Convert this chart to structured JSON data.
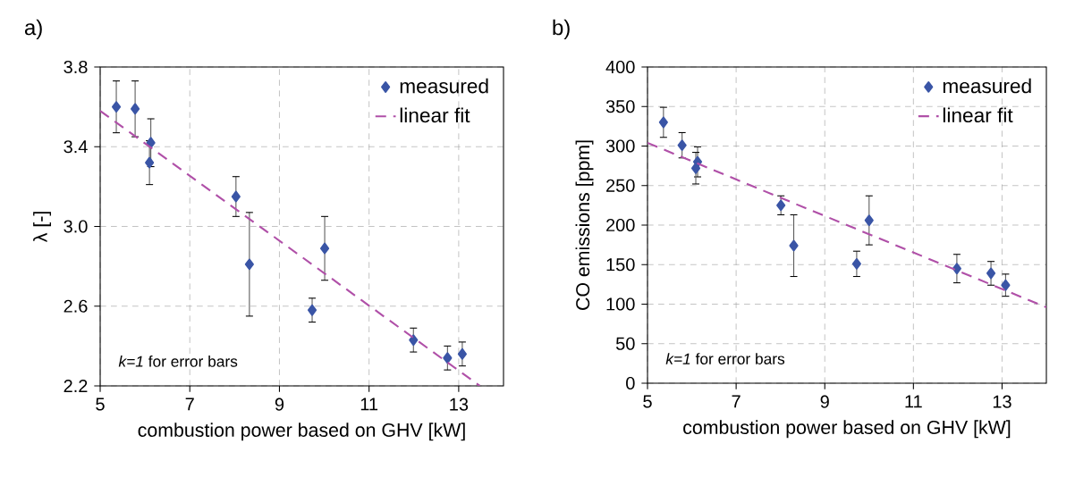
{
  "chart_data": [
    {
      "type": "scatter",
      "title": "a)",
      "xlabel": "combustion power based on GHV [kW]",
      "ylabel": "λ [-]",
      "xlim": [
        5,
        14
      ],
      "xticks": [
        5,
        7,
        9,
        11,
        13
      ],
      "ylim": [
        2.2,
        3.8
      ],
      "yticks": [
        2.2,
        2.6,
        {
          "value": 3.0,
          "label": "3.0"
        },
        3.4,
        3.8
      ],
      "grid": true,
      "legend": "top right",
      "annotations": [
        "*k=1*  for error bars"
      ],
      "series": [
        {
          "name": "measured",
          "marker": "diamond",
          "color": "#3a55a6",
          "x": [
            5.36,
            5.78,
            6.13,
            6.1,
            8.03,
            8.33,
            9.73,
            10.01,
            11.99,
            12.75,
            13.08
          ],
          "values": [
            3.6,
            3.59,
            3.42,
            3.32,
            3.15,
            2.81,
            2.58,
            2.89,
            2.43,
            2.34,
            2.36
          ],
          "errors": [
            0.13,
            0.14,
            0.12,
            0.11,
            0.1,
            0.26,
            0.06,
            0.16,
            0.06,
            0.06,
            0.06
          ]
        },
        {
          "name": "linear fit",
          "type": "line",
          "marker": "none",
          "line_style": "dashed",
          "color": "#b050a8",
          "x": [
            5,
            13.47
          ],
          "values": [
            3.58,
            2.2
          ]
        }
      ]
    },
    {
      "type": "scatter",
      "title": "b)",
      "xlabel": "combustion power based on GHV [kW]",
      "ylabel": "CO emissions [ppm]",
      "xlim": [
        5,
        14
      ],
      "xticks": [
        5,
        7,
        9,
        11,
        13
      ],
      "ylim": [
        0,
        400
      ],
      "yticks": [
        0,
        50,
        100,
        150,
        200,
        250,
        300,
        350,
        400
      ],
      "grid": true,
      "legend": "top right",
      "annotations": [
        "*k=1*  for error bars"
      ],
      "series": [
        {
          "name": "measured",
          "marker": "diamond",
          "color": "#3a55a6",
          "x": [
            5.36,
            5.78,
            6.13,
            6.09,
            8.01,
            8.3,
            9.72,
            10.0,
            11.98,
            12.75,
            13.08
          ],
          "values": [
            330,
            301,
            280,
            272,
            225,
            174,
            151,
            206,
            145,
            139,
            124
          ],
          "errors": [
            19,
            16,
            19,
            20,
            12,
            39,
            16,
            31,
            18,
            15,
            14
          ]
        },
        {
          "name": "linear fit",
          "type": "line",
          "marker": "none",
          "line_style": "dashed",
          "color": "#b050a8",
          "x": [
            5,
            14
          ],
          "values": [
            304,
            96
          ]
        }
      ]
    }
  ]
}
